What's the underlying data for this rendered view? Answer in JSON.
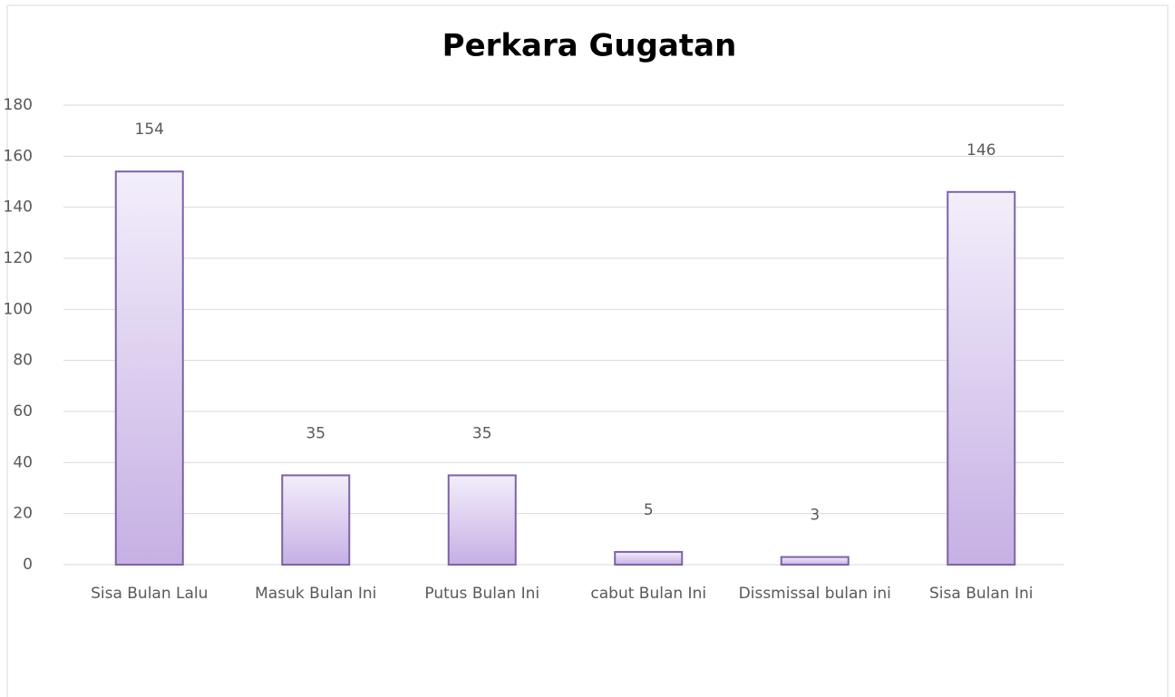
{
  "chart_data": {
    "type": "bar",
    "title": "Perkara Gugatan",
    "categories": [
      "Sisa Bulan Lalu",
      "Masuk Bulan Ini",
      "Putus Bulan Ini",
      "cabut Bulan Ini",
      "Dissmissal bulan ini",
      "Sisa Bulan Ini"
    ],
    "values": [
      154,
      35,
      35,
      5,
      3,
      146
    ],
    "color": "#c6b0e4",
    "ylim": [
      0,
      180
    ],
    "yticks": [
      0,
      20,
      40,
      60,
      80,
      100,
      120,
      140,
      160,
      180
    ],
    "grid": true
  }
}
